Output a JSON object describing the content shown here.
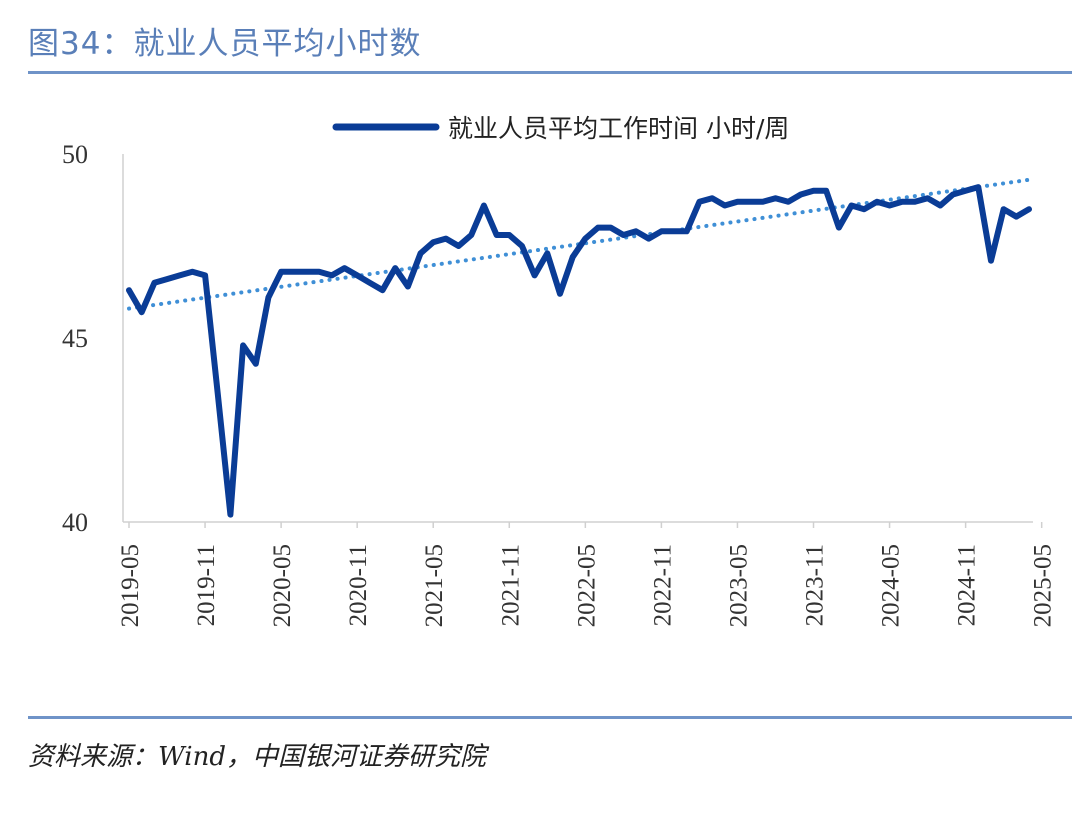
{
  "figure": {
    "title": "图34：就业人员平均小时数",
    "source": "资料来源：Wind，中国银河证券研究院"
  },
  "chart_data": {
    "type": "line",
    "legend_position": "top-center",
    "ylim": [
      40,
      50
    ],
    "yticks": [
      "40",
      "45",
      "50"
    ],
    "xticks": [
      "2019-05",
      "2019-11",
      "2020-05",
      "2020-11",
      "2021-05",
      "2021-11",
      "2022-05",
      "2022-11",
      "2023-05",
      "2023-11",
      "2024-05",
      "2024-11",
      "2025-05"
    ],
    "x_start": "2019-05",
    "series": [
      {
        "name": "就业人员平均工作时间 小时/周",
        "color": "#0a3c96",
        "values": [
          46.3,
          45.7,
          46.5,
          46.6,
          46.7,
          46.8,
          46.7,
          43.5,
          40.2,
          44.8,
          44.3,
          46.1,
          46.8,
          46.8,
          46.8,
          46.8,
          46.7,
          46.9,
          46.7,
          46.5,
          46.3,
          46.9,
          46.4,
          47.3,
          47.6,
          47.7,
          47.5,
          47.8,
          48.6,
          47.8,
          47.8,
          47.5,
          46.7,
          47.3,
          46.2,
          47.2,
          47.7,
          48.0,
          48.0,
          47.8,
          47.9,
          47.7,
          47.9,
          47.9,
          47.9,
          48.7,
          48.8,
          48.6,
          48.7,
          48.7,
          48.7,
          48.8,
          48.7,
          48.9,
          49.0,
          49.0,
          48.0,
          48.6,
          48.5,
          48.7,
          48.6,
          48.7,
          48.7,
          48.8,
          48.6,
          48.9,
          49.0,
          49.1,
          47.1,
          48.5,
          48.3,
          48.5
        ]
      }
    ],
    "trendline": {
      "style": "dotted",
      "color": "#3f8fd6",
      "start": 45.8,
      "end": 49.3
    }
  }
}
